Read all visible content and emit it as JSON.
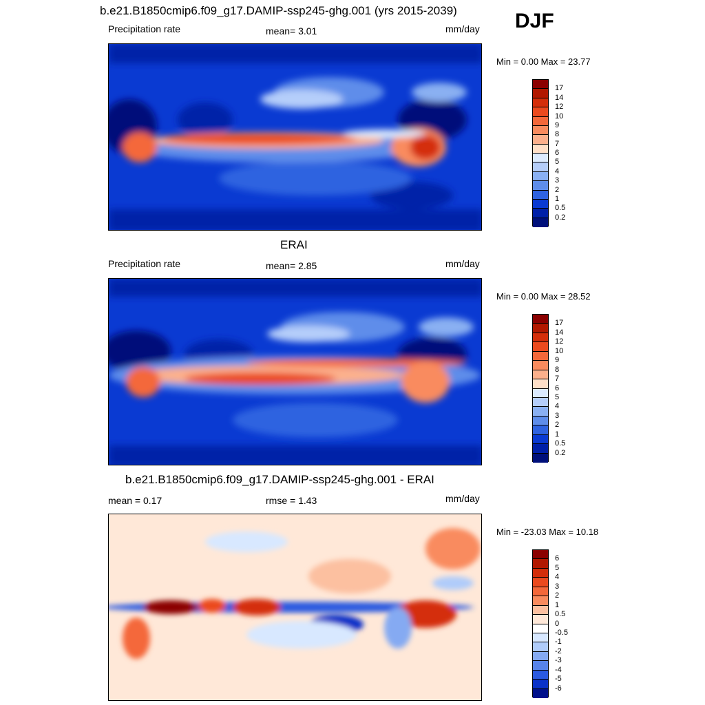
{
  "header": {
    "title_top": "b.e21.B1850cmip6.f09_g17.DAMIP-ssp245-ghg.001 (yrs 2015-2039)",
    "season": "DJF",
    "title_mid": "ERAI",
    "title_bottom": "b.e21.B1850cmip6.f09_g17.DAMIP-ssp245-ghg.001 - ERAI"
  },
  "panels": [
    {
      "left_label": "Precipitation rate",
      "center_label": "mean=   3.01",
      "units": "mm/day",
      "minmax": "Min =    0.00 Max =  23.77",
      "colorbar": {
        "labels": [
          "17",
          "14",
          "12",
          "10",
          "9",
          "8",
          "7",
          "6",
          "5",
          "4",
          "3",
          "2",
          "1",
          "0.5",
          "0.2"
        ],
        "colors": [
          "#8B0000",
          "#B21800",
          "#D42E0A",
          "#EB4A1E",
          "#F4683A",
          "#F98B5E",
          "#FCB08C",
          "#FFE0C8",
          "#DCEBFF",
          "#B5CEFA",
          "#8AB0F2",
          "#5E8DEA",
          "#2F63E0",
          "#0A3AD2",
          "#0020A8",
          "#00107A"
        ]
      }
    },
    {
      "left_label": "Precipitation rate",
      "center_label": "mean=   2.85",
      "units": "mm/day",
      "minmax": "Min =    0.00 Max =  28.52",
      "colorbar": {
        "labels": [
          "17",
          "14",
          "12",
          "10",
          "9",
          "8",
          "7",
          "6",
          "5",
          "4",
          "3",
          "2",
          "1",
          "0.5",
          "0.2"
        ],
        "colors": [
          "#8B0000",
          "#B21800",
          "#D42E0A",
          "#EB4A1E",
          "#F4683A",
          "#F98B5E",
          "#FCB08C",
          "#FFE0C8",
          "#DCEBFF",
          "#B5CEFA",
          "#8AB0F2",
          "#5E8DEA",
          "#2F63E0",
          "#0A3AD2",
          "#0020A8",
          "#00107A"
        ]
      }
    },
    {
      "left_label": "mean =   0.17",
      "center_label": "rmse =   1.43",
      "units": "mm/day",
      "minmax": "Min = -23.03 Max =  10.18",
      "colorbar": {
        "labels": [
          "6",
          "5",
          "4",
          "3",
          "2",
          "1",
          "0.5",
          "0",
          "-0.5",
          "-1",
          "-2",
          "-3",
          "-4",
          "-5",
          "-6"
        ],
        "colors": [
          "#8B0000",
          "#B21800",
          "#D42E0A",
          "#EB4A1E",
          "#F4683A",
          "#F98B5E",
          "#FCC0A0",
          "#FFE8D8",
          "#FFFFFF",
          "#D8E8FF",
          "#B0CCFA",
          "#85AAF2",
          "#5884EA",
          "#2B5AE0",
          "#0A32C8",
          "#00108A"
        ]
      }
    }
  ]
}
